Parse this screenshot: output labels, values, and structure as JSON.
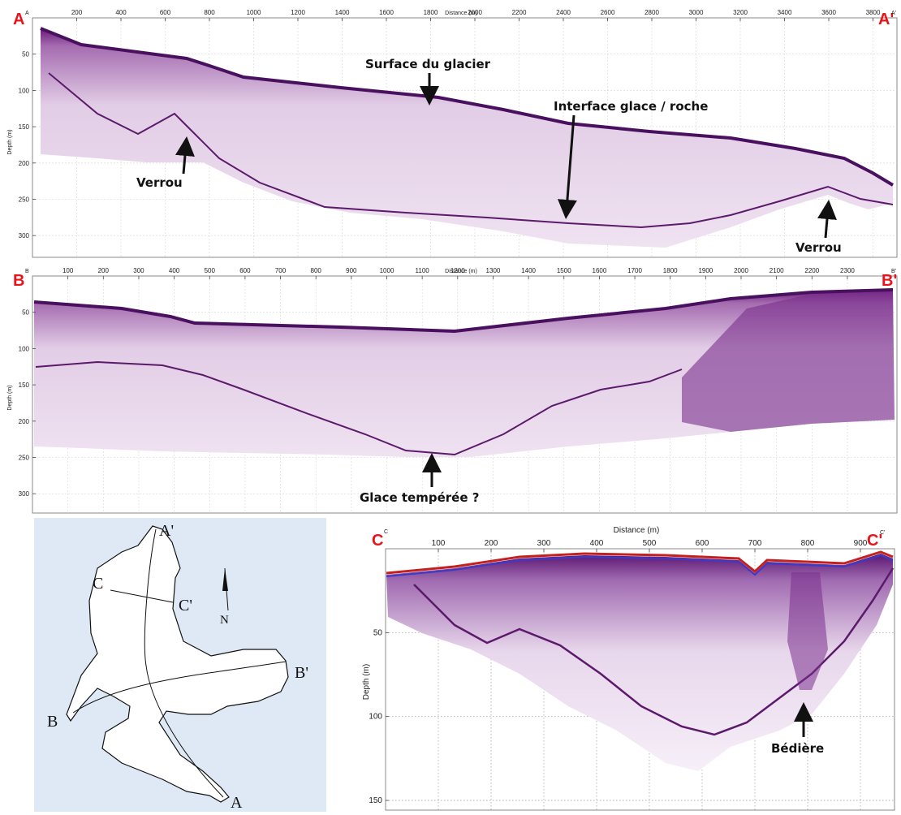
{
  "profile_a": {
    "start_label": "A",
    "end_label": "A'",
    "start_small": "A",
    "end_small": "A'",
    "x_title": "Distance (m)",
    "y_title": "Depth (m)",
    "x_ticks": [
      200,
      400,
      600,
      800,
      1000,
      1200,
      1400,
      1600,
      1800,
      2000,
      2200,
      2400,
      2600,
      2800,
      3000,
      3200,
      3400,
      3600,
      3800
    ],
    "y_ticks": [
      50,
      100,
      150,
      200,
      250,
      300
    ],
    "annotations": {
      "surface": "Surface du glacier",
      "interface": "Interface glace / roche",
      "verrou_left": "Verrou",
      "verrou_right": "Verrou"
    }
  },
  "profile_b": {
    "start_label": "B",
    "end_label": "B'",
    "start_small": "B",
    "end_small": "B'",
    "x_title": "Distance (m)",
    "y_title": "Depth (m)",
    "x_ticks": [
      100,
      200,
      300,
      400,
      500,
      600,
      700,
      800,
      900,
      1000,
      1100,
      1200,
      1300,
      1400,
      1500,
      1600,
      1700,
      1800,
      1900,
      2000,
      2100,
      2200,
      2300
    ],
    "y_ticks": [
      50,
      100,
      150,
      200,
      250,
      300
    ],
    "annotations": {
      "temperate": "Glace tempérée ?"
    }
  },
  "profile_c": {
    "start_label": "C",
    "end_label": "C'",
    "start_small": "C",
    "end_small": "C'",
    "x_title": "Distance (m)",
    "y_title": "Depth (m)",
    "x_ticks": [
      100,
      200,
      300,
      400,
      500,
      600,
      700,
      800,
      900
    ],
    "y_ticks": [
      50,
      100,
      150
    ],
    "annotations": {
      "bediere": "Bédière"
    }
  },
  "map": {
    "labels": {
      "a_prime": "A'",
      "a": "A",
      "b": "B",
      "b_prime": "B'",
      "c": "C",
      "c_prime": "C'",
      "north": "N"
    },
    "background": "#dfe9f5"
  },
  "colors": {
    "radar_dark": "#6a1a78",
    "radar_light": "#e7d3ea",
    "corner_red": "#e8141c",
    "surface_blue": "#3a3ac8"
  }
}
